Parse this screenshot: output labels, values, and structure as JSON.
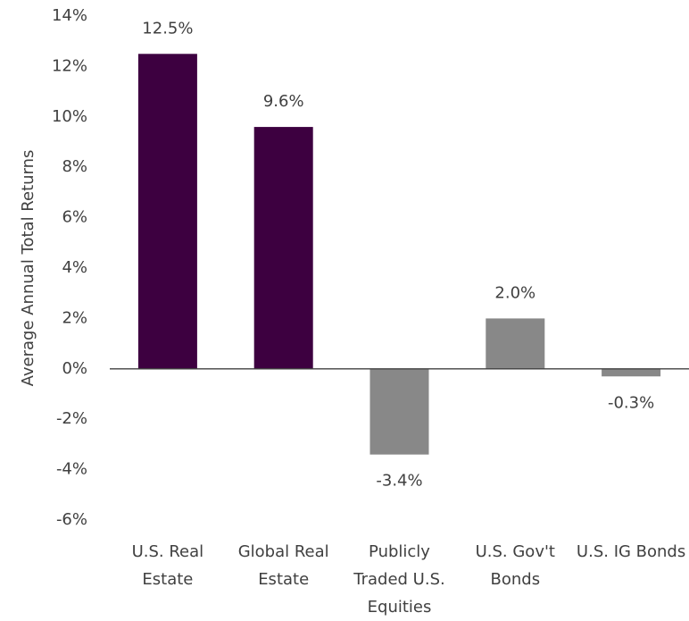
{
  "chart_data": {
    "type": "bar",
    "y_label": "Average Annual Total Returns",
    "categories": [
      "U.S. Real Estate",
      "Global Real Estate",
      "Publicly Traded U.S. Equities",
      "U.S. Gov't Bonds",
      "U.S. IG Bonds"
    ],
    "values": [
      12.5,
      9.6,
      -3.4,
      2.0,
      -0.3
    ],
    "value_labels": [
      "12.5%",
      "9.6%",
      "-3.4%",
      "2.0%",
      "-0.3%"
    ],
    "colors": [
      "#3d0040",
      "#3d0040",
      "#888888",
      "#888888",
      "#888888"
    ],
    "ylim": [
      -6,
      14
    ],
    "yticks": [
      {
        "value": -6,
        "label": "-6%"
      },
      {
        "value": -4,
        "label": "-4%"
      },
      {
        "value": -2,
        "label": "-2%"
      },
      {
        "value": 0,
        "label": "0%"
      },
      {
        "value": 2,
        "label": "2%"
      },
      {
        "value": 4,
        "label": "4%"
      },
      {
        "value": 6,
        "label": "6%"
      },
      {
        "value": 8,
        "label": "8%"
      },
      {
        "value": 10,
        "label": "10%"
      },
      {
        "value": 12,
        "label": "12%"
      },
      {
        "value": 14,
        "label": "14%"
      }
    ]
  }
}
